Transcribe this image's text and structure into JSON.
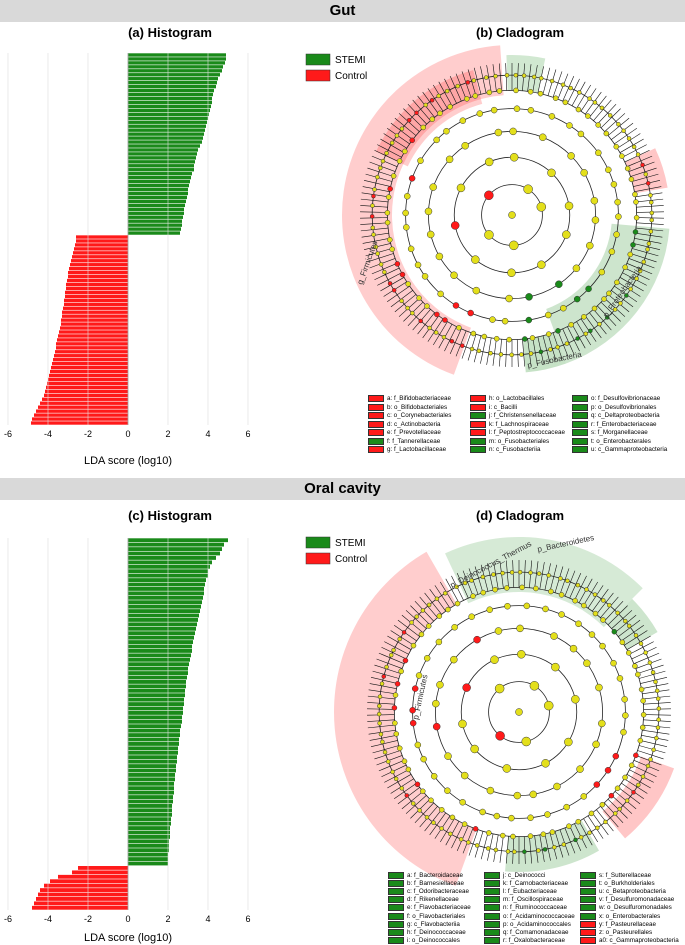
{
  "panels": {
    "gut_band": "Gut",
    "oral_band": "Oral cavity",
    "a_title": "(a) Histogram",
    "b_title": "(b) Cladogram",
    "c_title": "(c) Histogram",
    "d_title": "(d) Cladogram"
  },
  "legend": {
    "stemi": "STEMI",
    "control": "Control",
    "stemi_color": "#1a8a1a",
    "control_color": "#ff1a1a"
  },
  "chart_data": [
    {
      "type": "bar",
      "panel": "(a) Histogram",
      "xlabel": "LDA score (log10)",
      "xlim": [
        -6,
        6
      ],
      "xticks": [
        -6,
        -4,
        -2,
        0,
        2,
        4,
        6
      ],
      "orientation": "horizontal",
      "series": [
        {
          "name": "STEMI",
          "values": [
            4.9,
            4.9,
            4.85,
            4.75,
            4.7,
            4.6,
            4.5,
            4.45,
            4.4,
            4.3,
            4.25,
            4.2,
            4.2,
            4.15,
            4.1,
            4.05,
            4.0,
            3.95,
            3.9,
            3.85,
            3.8,
            3.75,
            3.7,
            3.6,
            3.5,
            3.45,
            3.4,
            3.35,
            3.3,
            3.3,
            3.2,
            3.15,
            3.1,
            3.05,
            3.0,
            3.0,
            2.95,
            2.9,
            2.85,
            2.8,
            2.8,
            2.75,
            2.7,
            2.7,
            2.65,
            2.6
          ]
        },
        {
          "name": "Control",
          "values": [
            -2.6,
            -2.6,
            -2.65,
            -2.7,
            -2.75,
            -2.8,
            -2.85,
            -2.9,
            -2.95,
            -3.0,
            -3.0,
            -3.05,
            -3.1,
            -3.1,
            -3.15,
            -3.15,
            -3.2,
            -3.2,
            -3.25,
            -3.3,
            -3.3,
            -3.35,
            -3.35,
            -3.4,
            -3.45,
            -3.5,
            -3.55,
            -3.6,
            -3.6,
            -3.65,
            -3.7,
            -3.75,
            -3.8,
            -3.85,
            -3.9,
            -3.95,
            -4.0,
            -4.05,
            -4.1,
            -4.15,
            -4.2,
            -4.3,
            -4.4,
            -4.5,
            -4.6,
            -4.7,
            -4.8,
            -4.85
          ]
        }
      ]
    },
    {
      "type": "bar",
      "panel": "(c) Histogram",
      "xlabel": "LDA score (log10)",
      "xlim": [
        -6,
        6
      ],
      "xticks": [
        -6,
        -4,
        -2,
        0,
        2,
        4,
        6
      ],
      "orientation": "horizontal",
      "series": [
        {
          "name": "STEMI",
          "values": [
            5.0,
            4.8,
            4.7,
            4.6,
            4.4,
            4.2,
            4.1,
            4.0,
            4.0,
            3.9,
            3.85,
            3.8,
            3.8,
            3.75,
            3.7,
            3.65,
            3.6,
            3.55,
            3.5,
            3.45,
            3.4,
            3.35,
            3.3,
            3.25,
            3.2,
            3.2,
            3.15,
            3.1,
            3.05,
            3.0,
            3.0,
            2.95,
            2.9,
            2.9,
            2.85,
            2.85,
            2.8,
            2.8,
            2.75,
            2.75,
            2.7,
            2.7,
            2.65,
            2.6,
            2.6,
            2.55,
            2.55,
            2.5,
            2.5,
            2.45,
            2.45,
            2.4,
            2.4,
            2.35,
            2.35,
            2.3,
            2.3,
            2.3,
            2.25,
            2.25,
            2.2,
            2.2,
            2.2,
            2.15,
            2.15,
            2.1,
            2.1,
            2.1,
            2.05,
            2.05,
            2.05,
            2.0,
            2.0,
            2.0
          ]
        },
        {
          "name": "Control",
          "values": [
            -2.5,
            -2.8,
            -3.5,
            -3.9,
            -4.2,
            -4.4,
            -4.5,
            -4.6,
            -4.7,
            -4.8
          ]
        }
      ]
    },
    {
      "type": "cladogram",
      "panel": "(b) Cladogram",
      "clade_labels": [
        "g_Firmicutes",
        "p_Proteobacteria",
        "p_Fusobacteria"
      ],
      "key": [
        {
          "code": "a",
          "name": "f_Bifidobacteriaceae",
          "group": "Control"
        },
        {
          "code": "b",
          "name": "o_Bifidobacteriales",
          "group": "Control"
        },
        {
          "code": "c",
          "name": "o_Corynebacteriales",
          "group": "Control"
        },
        {
          "code": "d",
          "name": "c_Actinobacteria",
          "group": "Control"
        },
        {
          "code": "e",
          "name": "f_Prevotellaceae",
          "group": "Control"
        },
        {
          "code": "f",
          "name": "f_Tannerellaceae",
          "group": "STEMI"
        },
        {
          "code": "g",
          "name": "f_Lactobacillaceae",
          "group": "Control"
        },
        {
          "code": "h",
          "name": "o_Lactobacillales",
          "group": "Control"
        },
        {
          "code": "i",
          "name": "c_Bacilli",
          "group": "Control"
        },
        {
          "code": "j",
          "name": "f_Christensenellaceae",
          "group": "STEMI"
        },
        {
          "code": "k",
          "name": "f_Lachnospiraceae",
          "group": "Control"
        },
        {
          "code": "l",
          "name": "f_Peptostreptococcaceae",
          "group": "Control"
        },
        {
          "code": "m",
          "name": "o_Fusobacteriales",
          "group": "STEMI"
        },
        {
          "code": "n",
          "name": "c_Fusobacteriia",
          "group": "STEMI"
        },
        {
          "code": "o",
          "name": "f_Desulfovibrionaceae",
          "group": "STEMI"
        },
        {
          "code": "p",
          "name": "o_Desulfovibrionales",
          "group": "STEMI"
        },
        {
          "code": "q",
          "name": "c_Deltaproteobacteria",
          "group": "STEMI"
        },
        {
          "code": "r",
          "name": "f_Enterobacteriaceae",
          "group": "STEMI"
        },
        {
          "code": "s",
          "name": "f_Morganellaceae",
          "group": "STEMI"
        },
        {
          "code": "t",
          "name": "o_Enterobacterales",
          "group": "STEMI"
        },
        {
          "code": "u",
          "name": "c_Gammaproteobacteria",
          "group": "STEMI"
        }
      ]
    },
    {
      "type": "cladogram",
      "panel": "(d) Cladogram",
      "clade_labels": [
        "p_Bacteroidetes",
        "p_Deinococcus_Thermus",
        "p_Firmicutes"
      ],
      "key": [
        {
          "code": "a",
          "name": "f_Bacteroidaceae",
          "group": "STEMI"
        },
        {
          "code": "b",
          "name": "f_Barnesiellaceae",
          "group": "STEMI"
        },
        {
          "code": "c",
          "name": "f_Odoribacteraceae",
          "group": "STEMI"
        },
        {
          "code": "d",
          "name": "f_Rikenellaceae",
          "group": "STEMI"
        },
        {
          "code": "e",
          "name": "f_Flavobacteriaceae",
          "group": "STEMI"
        },
        {
          "code": "f",
          "name": "o_Flavobacteriales",
          "group": "STEMI"
        },
        {
          "code": "g",
          "name": "c_Flavobacteriia",
          "group": "STEMI"
        },
        {
          "code": "h",
          "name": "f_Deinococcaceae",
          "group": "STEMI"
        },
        {
          "code": "i",
          "name": "o_Deinococcales",
          "group": "STEMI"
        },
        {
          "code": "j",
          "name": "c_Deinococci",
          "group": "STEMI"
        },
        {
          "code": "k",
          "name": "f_Carnobacteriaceae",
          "group": "STEMI"
        },
        {
          "code": "l",
          "name": "f_Eubacteriaceae",
          "group": "STEMI"
        },
        {
          "code": "m",
          "name": "f_Oscillospiraceae",
          "group": "STEMI"
        },
        {
          "code": "n",
          "name": "f_Ruminococcaceae",
          "group": "STEMI"
        },
        {
          "code": "o",
          "name": "f_Acidaminococcaceae",
          "group": "STEMI"
        },
        {
          "code": "p",
          "name": "o_Acidaminococcales",
          "group": "STEMI"
        },
        {
          "code": "q",
          "name": "f_Comamonadaceae",
          "group": "STEMI"
        },
        {
          "code": "r",
          "name": "f_Oxalobacteraceae",
          "group": "STEMI"
        },
        {
          "code": "s",
          "name": "f_Sutterellaceae",
          "group": "STEMI"
        },
        {
          "code": "t",
          "name": "o_Burkholderiales",
          "group": "STEMI"
        },
        {
          "code": "u",
          "name": "c_Betaproteobacteria",
          "group": "STEMI"
        },
        {
          "code": "v",
          "name": "f_Desulfuromonadaceae",
          "group": "STEMI"
        },
        {
          "code": "w",
          "name": "o_Desulfuromonadales",
          "group": "STEMI"
        },
        {
          "code": "x",
          "name": "o_Enterobacterales",
          "group": "STEMI"
        },
        {
          "code": "y",
          "name": "f_Pasteurellaceae",
          "group": "Control"
        },
        {
          "code": "z",
          "name": "o_Pasteurellales",
          "group": "Control"
        },
        {
          "code": "a0",
          "name": "c_Gammaproteobacteria",
          "group": "Control"
        }
      ]
    }
  ]
}
